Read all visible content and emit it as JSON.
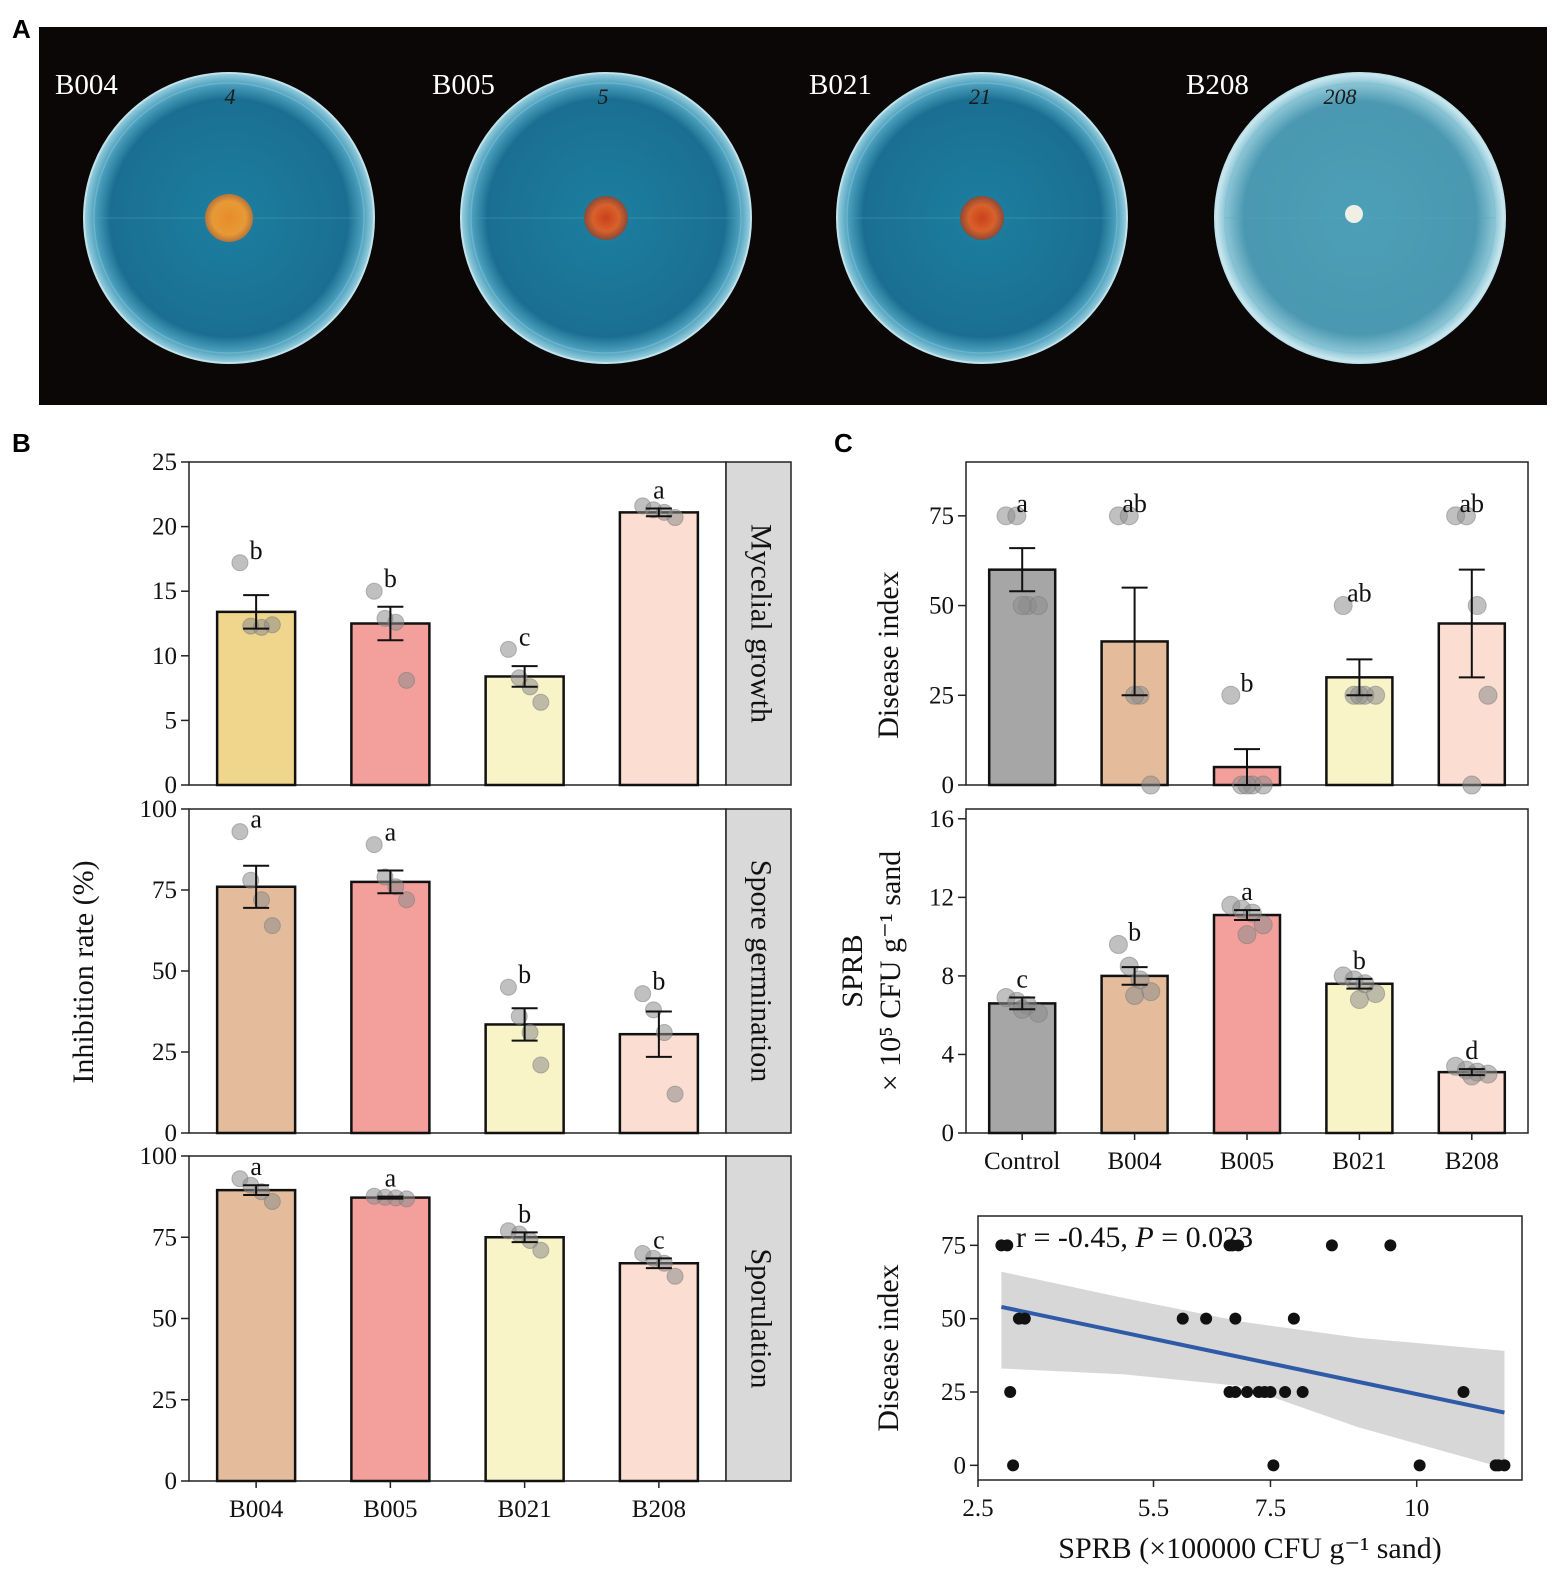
{
  "panel_labels": {
    "a": "A",
    "b": "B",
    "c": "C"
  },
  "plates": [
    {
      "label": "B004",
      "hand": "4",
      "colony": "orange"
    },
    {
      "label": "B005",
      "hand": "5",
      "colony": "red"
    },
    {
      "label": "B021",
      "hand": "21",
      "colony": "red"
    },
    {
      "label": "B208",
      "hand": "208",
      "colony": "white"
    }
  ],
  "colors": {
    "B004_gold": "#f0d68c",
    "tan": "#e4bc9c",
    "pink": "#f3a09c",
    "cream": "#f9f3c8",
    "peach": "#fbded1",
    "grey": "#a6a6a6",
    "strip": "#d9d9d9",
    "dot": "#8c8c8c",
    "line": "#2f5aa8",
    "band": "#d3d3d3"
  },
  "chart_data": [
    {
      "id": "B",
      "type": "bar",
      "ylabel": "Inhibition rate (%)",
      "categories": [
        "B004",
        "B005",
        "B021",
        "B208"
      ],
      "facets": [
        {
          "strip": "Mycelial growth",
          "ylim": [
            0,
            25
          ],
          "yticks": [
            0,
            5,
            10,
            15,
            20,
            25
          ],
          "values": [
            13.4,
            12.5,
            8.4,
            21.1
          ],
          "se": [
            1.3,
            1.3,
            0.8,
            0.3
          ],
          "letters": [
            "b",
            "b",
            "c",
            "a"
          ],
          "colors": [
            "#f0d68c",
            "#f3a09c",
            "#f9f3c8",
            "#fbded1"
          ],
          "points": [
            [
              17.2,
              12.3,
              12.2,
              12.4
            ],
            [
              15.0,
              12.9,
              12.6,
              8.1
            ],
            [
              10.5,
              8.3,
              7.6,
              6.4
            ],
            [
              21.6,
              21.3,
              21.1,
              20.7
            ]
          ]
        },
        {
          "strip": "Spore germination",
          "ylim": [
            0,
            100
          ],
          "yticks": [
            0,
            25,
            50,
            75,
            100
          ],
          "values": [
            76,
            77.5,
            33.5,
            30.5
          ],
          "se": [
            6.5,
            3.5,
            5,
            7
          ],
          "letters": [
            "a",
            "a",
            "b",
            "b"
          ],
          "colors": [
            "#e4bc9c",
            "#f3a09c",
            "#f9f3c8",
            "#fbded1"
          ],
          "points": [
            [
              93,
              78,
              72,
              64
            ],
            [
              89,
              79,
              76,
              72
            ],
            [
              45,
              36,
              31,
              21
            ],
            [
              43,
              38,
              31,
              12
            ]
          ]
        },
        {
          "strip": "Sporulation",
          "ylim": [
            0,
            100
          ],
          "yticks": [
            0,
            25,
            50,
            75,
            100
          ],
          "values": [
            89.5,
            87.2,
            75,
            67
          ],
          "se": [
            1.5,
            0.3,
            1.5,
            1.5
          ],
          "letters": [
            "a",
            "a",
            "b",
            "c"
          ],
          "colors": [
            "#e4bc9c",
            "#f3a09c",
            "#f9f3c8",
            "#fbded1"
          ],
          "points": [
            [
              93,
              91,
              89,
              86
            ],
            [
              87.6,
              87.3,
              87.1,
              86.8
            ],
            [
              77,
              76,
              74,
              71
            ],
            [
              70,
              68.5,
              67,
              63
            ]
          ]
        }
      ]
    },
    {
      "id": "C_disease",
      "type": "bar",
      "ylabel": "Disease index",
      "categories": [
        "Control",
        "B004",
        "B005",
        "B021",
        "B208"
      ],
      "ylim": [
        0,
        90
      ],
      "yticks": [
        0,
        25,
        50,
        75
      ],
      "values": [
        60,
        40,
        5,
        30,
        45
      ],
      "se": [
        6,
        15,
        5,
        5,
        15
      ],
      "letters": [
        "a",
        "ab",
        "b",
        "ab",
        "ab"
      ],
      "colors": [
        "#a6a6a6",
        "#e4bc9c",
        "#f3a09c",
        "#f9f3c8",
        "#fbded1"
      ],
      "points": [
        [
          75,
          75,
          50,
          50,
          50
        ],
        [
          75,
          75,
          25,
          0,
          25
        ],
        [
          25,
          0,
          0,
          0,
          0
        ],
        [
          50,
          25,
          25,
          25,
          25
        ],
        [
          75,
          75,
          50,
          25,
          0
        ]
      ]
    },
    {
      "id": "C_sprb",
      "type": "bar",
      "ylabel_line1": "SPRB",
      "ylabel_line2": "× 10⁵ CFU g⁻¹ sand",
      "categories": [
        "Control",
        "B004",
        "B005",
        "B021",
        "B208"
      ],
      "ylim": [
        0,
        16.5
      ],
      "yticks": [
        0,
        4,
        8,
        12,
        16
      ],
      "values": [
        6.6,
        8.0,
        11.1,
        7.6,
        3.1
      ],
      "se": [
        0.3,
        0.45,
        0.25,
        0.25,
        0.15
      ],
      "letters": [
        "c",
        "b",
        "a",
        "b",
        "d"
      ],
      "colors": [
        "#a6a6a6",
        "#e4bc9c",
        "#f3a09c",
        "#f9f3c8",
        "#fbded1"
      ],
      "points": [
        [
          6.9,
          6.7,
          6.5,
          6.1,
          6.3
        ],
        [
          9.6,
          8.5,
          7.8,
          7.2,
          7.0
        ],
        [
          11.6,
          11.4,
          11.2,
          10.6,
          10.1
        ],
        [
          8.0,
          7.8,
          7.6,
          7.1,
          6.8
        ],
        [
          3.4,
          3.2,
          3.1,
          3.0,
          2.9
        ]
      ]
    },
    {
      "id": "C_scatter",
      "type": "scatter",
      "xlabel": "SPRB (×100000 CFU g⁻¹ sand)",
      "ylabel": "Disease index",
      "annotation_prefix": "r = -0.45, ",
      "annotation_p": "P",
      "annotation_suffix": " = 0.023",
      "xlim": [
        2.5,
        11.8
      ],
      "xticks": [
        2.5,
        5.5,
        7.5,
        10
      ],
      "xtick_labels": [
        "2.5",
        "5.5",
        "7.5",
        "10"
      ],
      "ylim": [
        -5,
        85
      ],
      "yticks": [
        0,
        25,
        50,
        75
      ],
      "x": [
        2.9,
        3.0,
        3.05,
        3.2,
        3.1,
        3.3,
        6.0,
        6.4,
        6.8,
        6.85,
        6.9,
        6.95,
        6.9,
        7.1,
        7.3,
        7.4,
        7.5,
        7.55,
        7.75,
        7.9,
        8.05,
        8.55,
        9.55,
        10.05,
        10.8,
        11.35,
        11.4,
        11.5,
        6.8
      ],
      "y": [
        75,
        75,
        25,
        50,
        0,
        50,
        50,
        50,
        75,
        75,
        50,
        75,
        25,
        25,
        25,
        25,
        25,
        0,
        25,
        50,
        25,
        75,
        75,
        0,
        25,
        0,
        0,
        0,
        25
      ],
      "fit": {
        "x": [
          2.9,
          11.5
        ],
        "y": [
          54,
          18
        ]
      },
      "band_upper": [
        [
          2.9,
          66
        ],
        [
          5,
          57
        ],
        [
          7,
          49
        ],
        [
          9,
          43.5
        ],
        [
          11.5,
          39
        ]
      ],
      "band_lower": [
        [
          2.9,
          33
        ],
        [
          5,
          31
        ],
        [
          7,
          27
        ],
        [
          9,
          13
        ],
        [
          11.5,
          -1
        ]
      ]
    }
  ]
}
